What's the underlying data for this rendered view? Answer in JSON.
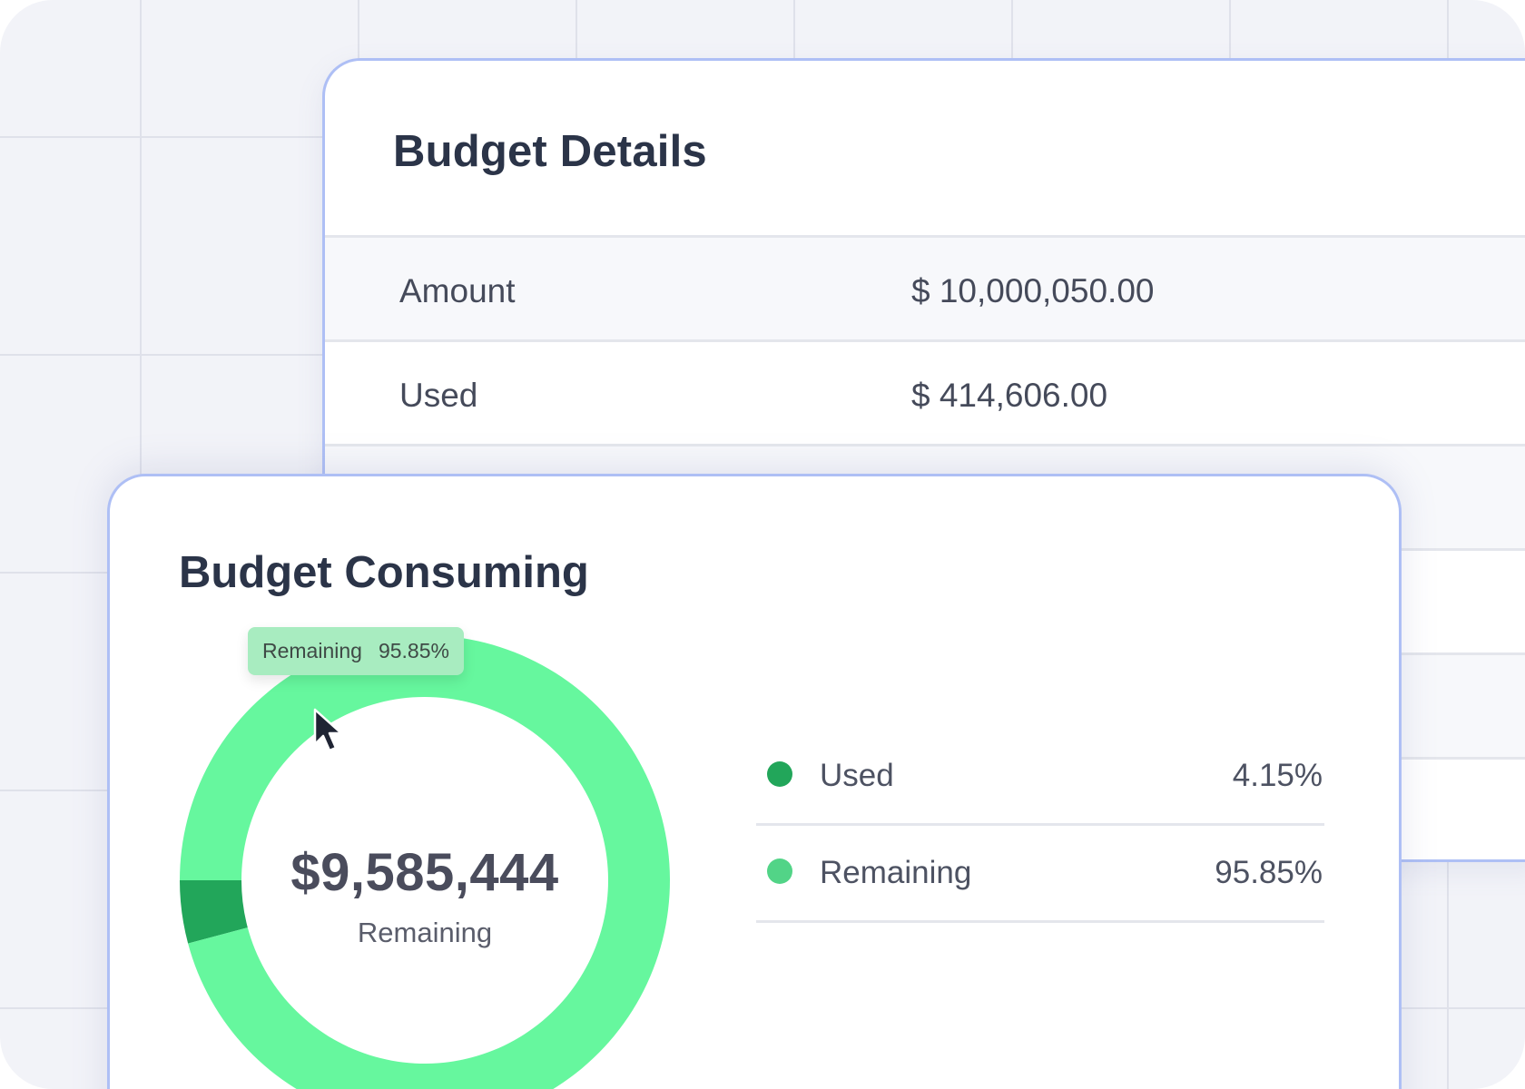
{
  "details": {
    "title": "Budget Details",
    "rows": [
      {
        "label": "Amount",
        "value": "$ 10,000,050.00"
      },
      {
        "label": "Used",
        "value": "$ 414,606.00"
      }
    ]
  },
  "consuming": {
    "title": "Budget Consuming",
    "center_amount": "$9,585,444",
    "center_label": "Remaining",
    "tooltip": {
      "label": "Remaining",
      "value": "95.85%"
    },
    "legend": [
      {
        "name": "Used",
        "value": "4.15%",
        "color": "#22a65a"
      },
      {
        "name": "Remaining",
        "value": "95.85%",
        "color": "#52d487"
      }
    ]
  },
  "chart_data": {
    "type": "pie",
    "labels": [
      "Used",
      "Remaining"
    ],
    "values": [
      4.15,
      95.85
    ],
    "colors": [
      "#22a65a",
      "#66f79e"
    ]
  }
}
